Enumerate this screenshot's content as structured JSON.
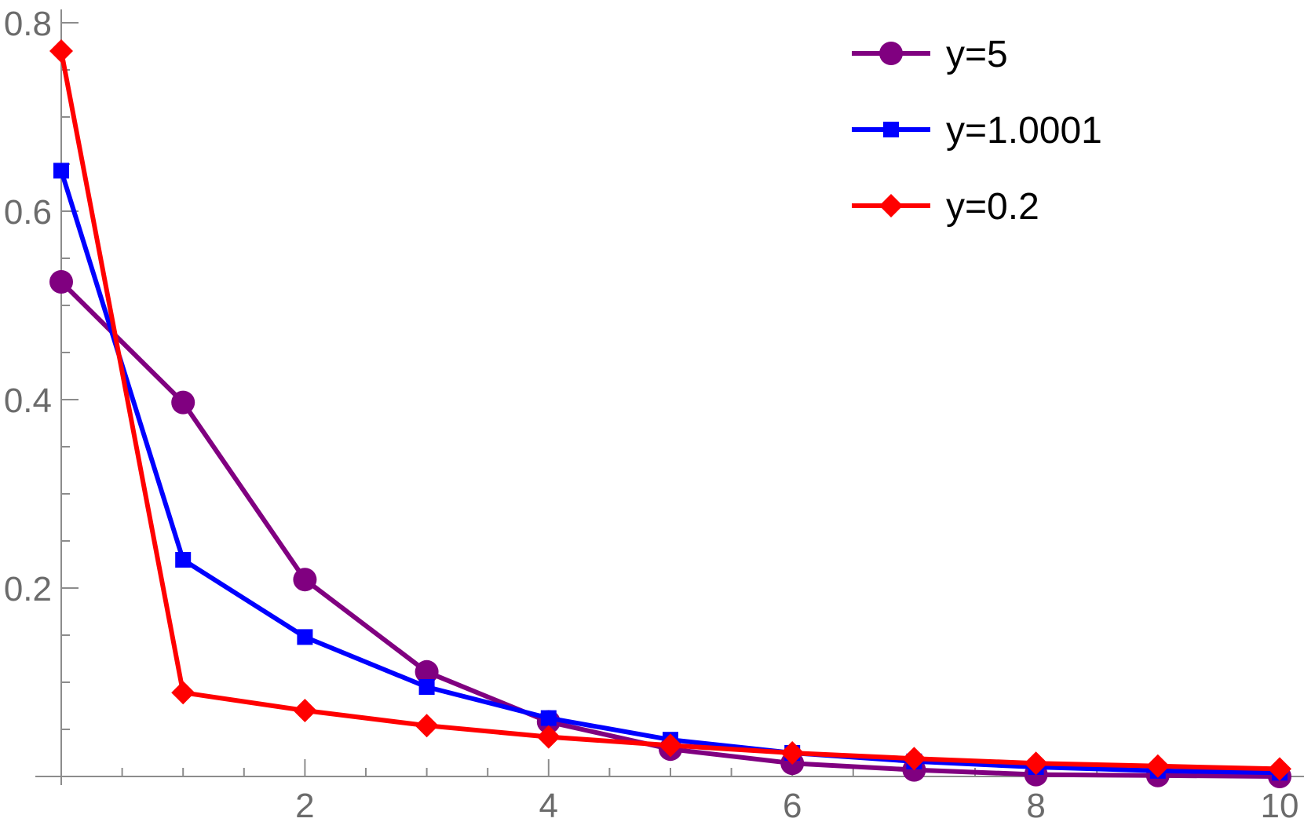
{
  "chart_data": {
    "type": "line",
    "title": "",
    "xlabel": "",
    "ylabel": "",
    "xlim": [
      0,
      10
    ],
    "ylim": [
      0,
      0.8
    ],
    "x_ticks": [
      2,
      4,
      6,
      8,
      10
    ],
    "x_tick_labels": [
      "2",
      "4",
      "6",
      "8",
      "10"
    ],
    "y_ticks": [
      0.2,
      0.4,
      0.6,
      0.8
    ],
    "y_tick_labels": [
      "0.2",
      "0.4",
      "0.6",
      "0.8"
    ],
    "grid": false,
    "legend_position": "top-right",
    "x": [
      0,
      1,
      2,
      3,
      4,
      5,
      6,
      7,
      8,
      9,
      10
    ],
    "series": [
      {
        "name": "y=5",
        "color": "#800080",
        "marker": "circle",
        "values": [
          0.525,
          0.397,
          0.209,
          0.111,
          0.058,
          0.029,
          0.014,
          0.007,
          0.002,
          0.001,
          0.0
        ]
      },
      {
        "name": "y=1.0001",
        "color": "#0000ff",
        "marker": "square",
        "values": [
          0.643,
          0.23,
          0.148,
          0.095,
          0.062,
          0.039,
          0.025,
          0.016,
          0.01,
          0.006,
          0.004
        ]
      },
      {
        "name": "y=0.2",
        "color": "#ff0000",
        "marker": "diamond",
        "values": [
          0.77,
          0.089,
          0.07,
          0.054,
          0.042,
          0.033,
          0.025,
          0.019,
          0.014,
          0.011,
          0.008
        ]
      }
    ]
  }
}
